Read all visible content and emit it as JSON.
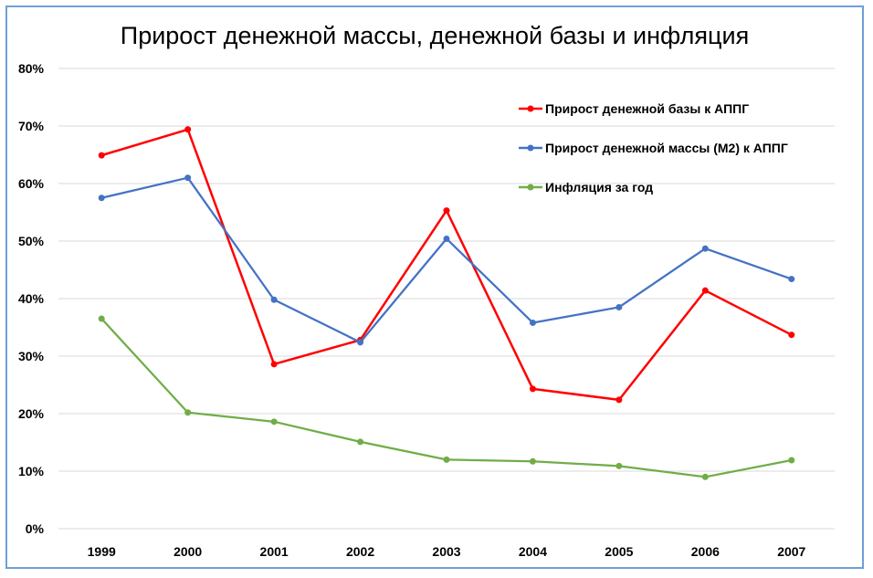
{
  "chart_data": {
    "type": "line",
    "title": "Прирост денежной массы, денежной базы и инфляция",
    "xlabel": "",
    "ylabel": "",
    "categories": [
      "1999",
      "2000",
      "2001",
      "2002",
      "2003",
      "2004",
      "2005",
      "2006",
      "2007"
    ],
    "ylim": [
      0,
      80
    ],
    "yticks": [
      0,
      10,
      20,
      30,
      40,
      50,
      60,
      70,
      80
    ],
    "ytick_labels": [
      "0%",
      "10%",
      "20%",
      "30%",
      "40%",
      "50%",
      "60%",
      "70%",
      "80%"
    ],
    "grid": "horizontal",
    "legend_position": "top-right",
    "series": [
      {
        "name": "Прирост денежной базы к АППГ",
        "color": "#ff0000",
        "values": [
          64.9,
          69.4,
          28.6,
          32.8,
          55.3,
          24.3,
          22.4,
          41.4,
          33.7
        ]
      },
      {
        "name": "Прирост денежной массы (М2) к АППГ",
        "color": "#4472c4",
        "values": [
          57.5,
          61.0,
          39.8,
          32.4,
          50.4,
          35.8,
          38.5,
          48.7,
          43.4
        ]
      },
      {
        "name": "Инфляция за год",
        "color": "#70ad47",
        "values": [
          36.5,
          20.2,
          18.6,
          15.1,
          12.0,
          11.7,
          10.9,
          9.0,
          11.9
        ]
      }
    ]
  }
}
